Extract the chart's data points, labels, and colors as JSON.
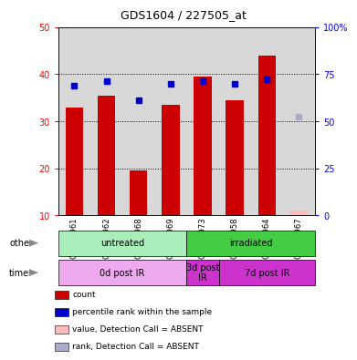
{
  "title": "GDS1604 / 227505_at",
  "samples": [
    "GSM93961",
    "GSM93962",
    "GSM93968",
    "GSM93969",
    "GSM93973",
    "GSM93958",
    "GSM93964",
    "GSM93967"
  ],
  "bar_values": [
    33,
    35.5,
    19.5,
    33.5,
    39.5,
    34.5,
    44,
    11
  ],
  "bar_absent": [
    false,
    false,
    false,
    false,
    false,
    false,
    false,
    true
  ],
  "rank_values": [
    37.5,
    38.5,
    34.5,
    38,
    38.5,
    38,
    39,
    31
  ],
  "rank_absent": [
    false,
    false,
    false,
    false,
    false,
    false,
    false,
    true
  ],
  "bar_color_present": "#cc0000",
  "bar_color_absent": "#ffbbbb",
  "rank_color_present": "#0000cc",
  "rank_color_absent": "#aaaacc",
  "ylim": [
    10,
    50
  ],
  "y2lim": [
    0,
    100
  ],
  "yticks": [
    10,
    20,
    30,
    40,
    50
  ],
  "y2ticks": [
    0,
    25,
    50,
    75,
    100
  ],
  "groups_other": [
    {
      "label": "untreated",
      "start": 0,
      "end": 4,
      "color": "#aaeebb"
    },
    {
      "label": "irradiated",
      "start": 4,
      "end": 8,
      "color": "#44cc44"
    }
  ],
  "groups_time": [
    {
      "label": "0d post IR",
      "start": 0,
      "end": 4,
      "color": "#eeaaee"
    },
    {
      "label": "3d post\nIR",
      "start": 4,
      "end": 5,
      "color": "#cc33cc"
    },
    {
      "label": "7d post IR",
      "start": 5,
      "end": 8,
      "color": "#cc33cc"
    }
  ],
  "legend_items": [
    {
      "label": "count",
      "color": "#cc0000"
    },
    {
      "label": "percentile rank within the sample",
      "color": "#0000cc"
    },
    {
      "label": "value, Detection Call = ABSENT",
      "color": "#ffbbbb"
    },
    {
      "label": "rank, Detection Call = ABSENT",
      "color": "#aaaacc"
    }
  ]
}
